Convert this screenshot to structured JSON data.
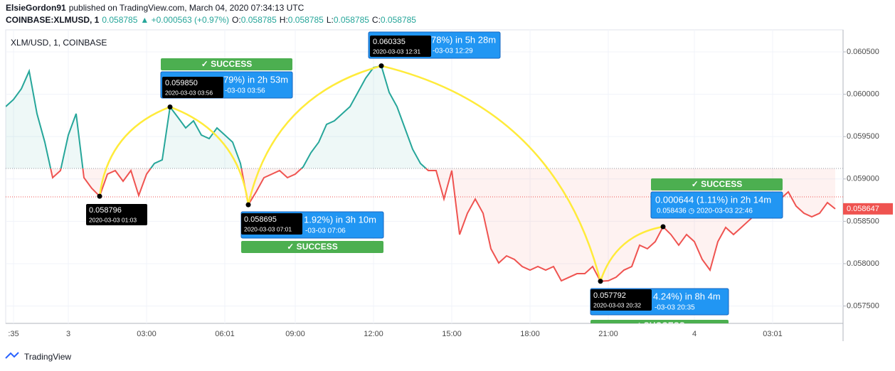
{
  "header": {
    "author": "ElsieGordon91",
    "published": "published on TradingView.com, March 04, 2020 07:34:13 UTC",
    "symbol": "COINBASE:XLMUSD, 1",
    "price": "0.058785",
    "change": "▲ +0.000563 (+0.97%)",
    "ohlc": [
      "O:",
      "0.058785",
      "H:",
      "0.058785",
      "L:",
      "0.058785",
      "C:",
      "0.058785"
    ]
  },
  "brand": "TradingView",
  "chart_data": {
    "type": "line",
    "legend_label": "XLM/USD, 1, COINBASE",
    "categories": [
      null,
      ":35",
      null,
      null,
      null,
      null,
      null,
      null,
      "3",
      null,
      null,
      null,
      null,
      null,
      null,
      null,
      null,
      null,
      "03:00",
      null,
      null,
      null,
      null,
      null,
      null,
      null,
      null,
      null,
      "06:01",
      null,
      null,
      null,
      null,
      null,
      null,
      null,
      null,
      "09:00",
      null,
      null,
      null,
      null,
      null,
      null,
      null,
      null,
      null,
      "12:00",
      null,
      null,
      null,
      null,
      null,
      null,
      null,
      null,
      null,
      "15:00",
      null,
      null,
      null,
      null,
      null,
      null,
      null,
      null,
      null,
      "18:00",
      null,
      null,
      null,
      null,
      null,
      null,
      null,
      null,
      null,
      "21:00",
      null,
      null,
      null,
      null,
      null,
      null,
      null,
      null,
      null,
      null,
      "4",
      null,
      null,
      null,
      null,
      null,
      null,
      null,
      null,
      null,
      "03:01",
      null,
      null,
      null,
      null,
      null,
      null,
      null,
      null
    ],
    "series": [
      {
        "name": "XLM/USD",
        "up_color": "#26a69a",
        "down_color": "#ef5350",
        "values": [
          0.059854,
          0.059938,
          0.060064,
          0.060273,
          0.05977,
          0.059434,
          0.059015,
          0.059099,
          0.059518,
          0.05977,
          0.059015,
          0.058889,
          0.058796,
          0.059057,
          0.059099,
          0.058973,
          0.059099,
          0.058805,
          0.059057,
          0.059183,
          0.059225,
          0.05985,
          0.059728,
          0.059602,
          0.059686,
          0.059518,
          0.059476,
          0.059602,
          0.059518,
          0.059434,
          0.059183,
          0.058695,
          0.058847,
          0.059015,
          0.059057,
          0.059099,
          0.059015,
          0.059057,
          0.059141,
          0.059309,
          0.059434,
          0.059644,
          0.059686,
          0.05977,
          0.059854,
          0.060022,
          0.06019,
          0.060315,
          0.060335,
          0.060022,
          0.059854,
          0.059602,
          0.059351,
          0.059183,
          0.059099,
          0.059099,
          0.058763,
          0.059099,
          0.058344,
          0.058595,
          0.058763,
          0.058595,
          0.058176,
          0.058008,
          0.058092,
          0.05805,
          0.057966,
          0.057924,
          0.057966,
          0.057924,
          0.057966,
          0.057798,
          0.05784,
          0.057882,
          0.057882,
          0.057966,
          0.057792,
          0.057798,
          0.05784,
          0.057924,
          0.057966,
          0.058218,
          0.058176,
          0.05826,
          0.058436,
          0.058344,
          0.058218,
          0.058344,
          0.05826,
          0.05805,
          0.057924,
          0.05826,
          0.058428,
          0.058344,
          0.058428,
          0.058512,
          0.058595,
          0.058721,
          0.058805,
          0.058763,
          0.058847,
          0.058679,
          0.058595,
          0.058553,
          0.058595,
          0.058721,
          0.058647
        ]
      }
    ],
    "last_price_label": "0.058647",
    "baseline": 0.059124,
    "price_line": 0.058788,
    "ylim": [
      0.057295,
      0.06076
    ],
    "yticks": [
      {
        "value": 0.0575,
        "label": "0.057500"
      },
      {
        "value": 0.058,
        "label": "0.058000"
      },
      {
        "value": 0.0585,
        "label": "0.058500"
      },
      {
        "value": 0.059,
        "label": "0.059000"
      },
      {
        "value": 0.0595,
        "label": "0.059500"
      },
      {
        "value": 0.06,
        "label": "0.060000"
      },
      {
        "value": 0.0605,
        "label": "0.060500"
      }
    ],
    "grid": true,
    "annotations": [
      {
        "price": "0.058796",
        "time": "2020-03-03 01:03"
      },
      {
        "price": "0.059850",
        "time": "2020-03-03 03:56",
        "change": "79%) in 2h 53m",
        "end": "-03-03  03:56",
        "status": "✓ SUCCESS"
      },
      {
        "price": "0.058695",
        "time": "2020-03-03 07:01",
        "change": "1.92%) in 3h 10m",
        "end": "-03-03  07:06",
        "status": "✓ SUCCESS"
      },
      {
        "price": "0.060335",
        "time": "2020-03-03 12:31",
        "change": "78%) in 5h 28m",
        "end": "-03-03  12:29"
      },
      {
        "price": "0.057792",
        "time": "2020-03-03 20:32",
        "change": "4.24%) in 8h 4m",
        "end": "-03-03  20:35",
        "status": "✓ SUCCESS"
      },
      {
        "change": "0.000644 (1.11%) in 2h 14m",
        "end": "0.058436 ◷ 2020-03-03  22:46",
        "status": "✓ SUCCESS"
      }
    ]
  }
}
